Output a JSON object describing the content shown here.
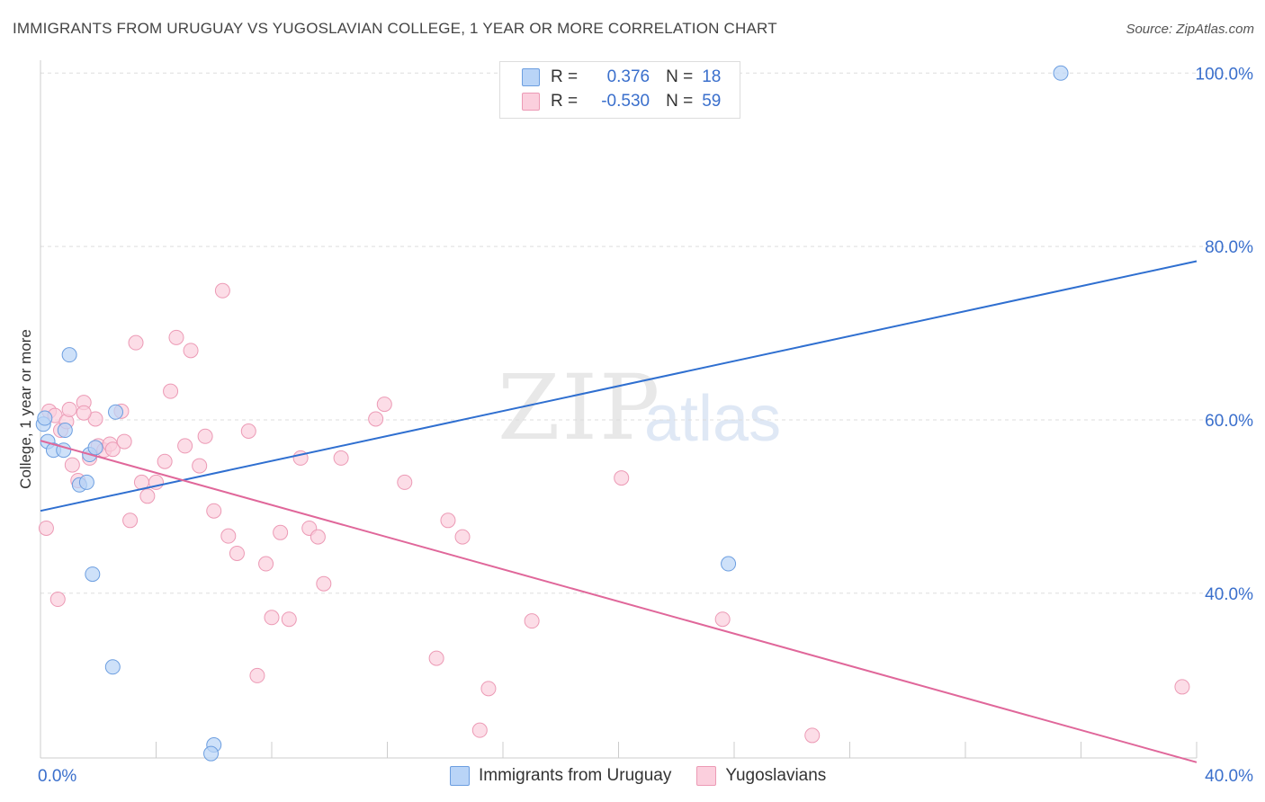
{
  "title": "IMMIGRANTS FROM URUGUAY VS YUGOSLAVIAN COLLEGE, 1 YEAR OR MORE CORRELATION CHART",
  "source": "Source: ZipAtlas.com",
  "watermark": {
    "zip": "ZIP",
    "atlas": "atlas"
  },
  "legend": {
    "r_label": "R =",
    "n_label": "N =",
    "rows": [
      {
        "r": "0.376",
        "n": "18"
      },
      {
        "r": "-0.530",
        "n": "59"
      }
    ]
  },
  "bottom_legend": [
    "Immigrants from Uruguay",
    "Yugoslavians"
  ],
  "colors": {
    "blue_fill": "#b9d4f7",
    "blue_stroke": "#6c9ee0",
    "blue_line": "#2f6fd0",
    "pink_fill": "#fbcfdd",
    "pink_stroke": "#ec9ab5",
    "pink_line": "#e0679a",
    "tick_text": "#3a6fcc",
    "grid": "#dddddd"
  },
  "chart_data": {
    "type": "scatter",
    "title": "IMMIGRANTS FROM URUGUAY VS YUGOSLAVIAN COLLEGE, 1 YEAR OR MORE CORRELATION CHART",
    "xlabel": "",
    "ylabel": "College, 1 year or more",
    "xlim": [
      0,
      40
    ],
    "ylim": [
      21,
      102
    ],
    "x_tick_labels": [
      "0.0%",
      "40.0%"
    ],
    "y_ticks": [
      40,
      60,
      80,
      100
    ],
    "y_tick_labels": [
      "40.0%",
      "60.0%",
      "80.0%",
      "100.0%"
    ],
    "grid": true,
    "legend_position": "top-center",
    "series": [
      {
        "name": "Immigrants from Uruguay",
        "color": "#6c9ee0",
        "x": [
          0.1,
          0.25,
          0.45,
          0.85,
          0.8,
          1.35,
          1.0,
          1.7,
          1.6,
          1.9,
          2.6,
          2.5,
          1.8,
          6.0,
          5.9,
          23.8,
          35.3,
          0.15
        ],
        "y": [
          59.5,
          57.5,
          56.5,
          58.8,
          56.5,
          52.5,
          67.5,
          56.0,
          52.8,
          56.8,
          60.9,
          31.5,
          42.2,
          22.5,
          21.5,
          43.4,
          100.0,
          60.2
        ],
        "trend": {
          "x": [
            0,
            40
          ],
          "y": [
            49.5,
            78.3
          ]
        }
      },
      {
        "name": "Yugoslavians",
        "color": "#ec9ab5",
        "x": [
          0.3,
          0.5,
          0.7,
          0.9,
          1.1,
          1.3,
          1.5,
          1.7,
          1.9,
          2.0,
          2.2,
          2.4,
          2.5,
          2.8,
          3.1,
          3.3,
          3.5,
          3.7,
          4.0,
          4.3,
          4.5,
          4.7,
          5.0,
          5.2,
          5.5,
          5.7,
          6.0,
          6.3,
          6.5,
          6.8,
          7.2,
          7.5,
          7.8,
          8.0,
          8.3,
          8.6,
          9.0,
          9.3,
          9.6,
          9.8,
          10.4,
          11.6,
          11.9,
          12.6,
          13.7,
          14.1,
          14.6,
          15.2,
          15.5,
          17.0,
          20.1,
          23.6,
          26.7,
          39.5,
          0.2,
          0.6,
          1.0,
          1.5,
          2.9
        ],
        "y": [
          61.0,
          60.5,
          58.8,
          59.8,
          54.8,
          53.0,
          62.0,
          55.6,
          60.1,
          57.0,
          56.5,
          57.2,
          56.6,
          61.0,
          48.4,
          68.9,
          52.8,
          51.2,
          52.8,
          55.2,
          63.3,
          69.5,
          57.0,
          68.0,
          54.7,
          58.1,
          49.5,
          74.9,
          46.6,
          44.6,
          58.7,
          30.5,
          43.4,
          37.2,
          47.0,
          37.0,
          55.6,
          47.5,
          46.5,
          41.1,
          55.6,
          60.1,
          61.8,
          52.8,
          32.5,
          48.4,
          46.5,
          24.2,
          29.0,
          36.8,
          53.3,
          37.0,
          23.6,
          29.2,
          47.5,
          39.3,
          61.2,
          60.8,
          57.5
        ],
        "trend": {
          "x": [
            0,
            40
          ],
          "y": [
            57.6,
            20.5
          ]
        }
      }
    ]
  }
}
